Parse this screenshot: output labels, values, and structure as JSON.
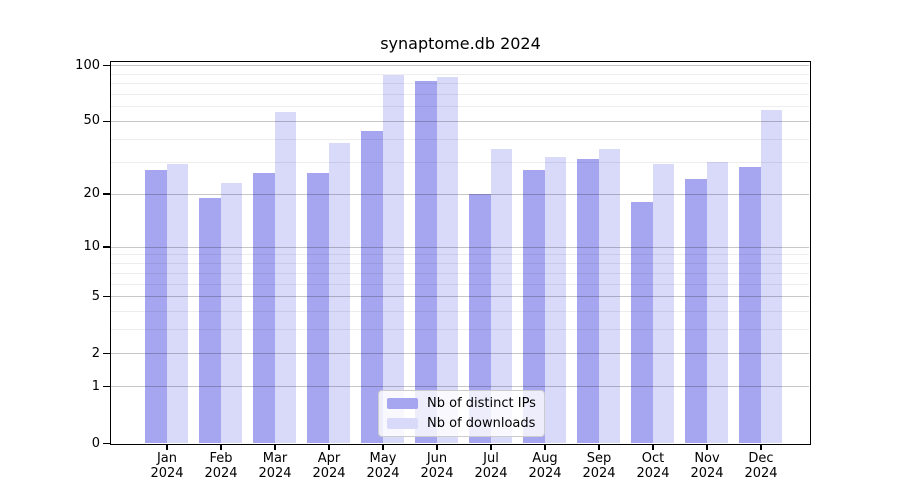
{
  "chart_data": {
    "type": "bar",
    "title": "synaptome.db 2024",
    "categories": [
      "Jan",
      "Feb",
      "Mar",
      "Apr",
      "May",
      "Jun",
      "Jul",
      "Aug",
      "Sep",
      "Oct",
      "Nov",
      "Dec"
    ],
    "category_year": "2024",
    "series": [
      {
        "name": "Nb of distinct IPs",
        "color": "#a6a6f0",
        "values": [
          27,
          19,
          26,
          26,
          44,
          82,
          20,
          27,
          31,
          18,
          24,
          28
        ]
      },
      {
        "name": "Nb of downloads",
        "color": "#d9d9fa",
        "values": [
          29,
          23,
          56,
          38,
          88,
          86,
          35,
          32,
          35,
          29,
          30,
          57
        ]
      }
    ],
    "yticks": [
      0,
      1,
      2,
      5,
      10,
      20,
      50,
      100
    ],
    "minor_gridlines": [
      3,
      4,
      6,
      7,
      8,
      9,
      30,
      40,
      60,
      70,
      80,
      90
    ],
    "scale": "log1p",
    "ylim": [
      0,
      105
    ],
    "grid": true,
    "legend_position": "lower-center"
  },
  "colors": {
    "major_grid": "rgba(0,0,0,0.22)",
    "minor_grid": "rgba(0,0,0,0.07)",
    "axis": "#000000",
    "background": "#ffffff"
  }
}
